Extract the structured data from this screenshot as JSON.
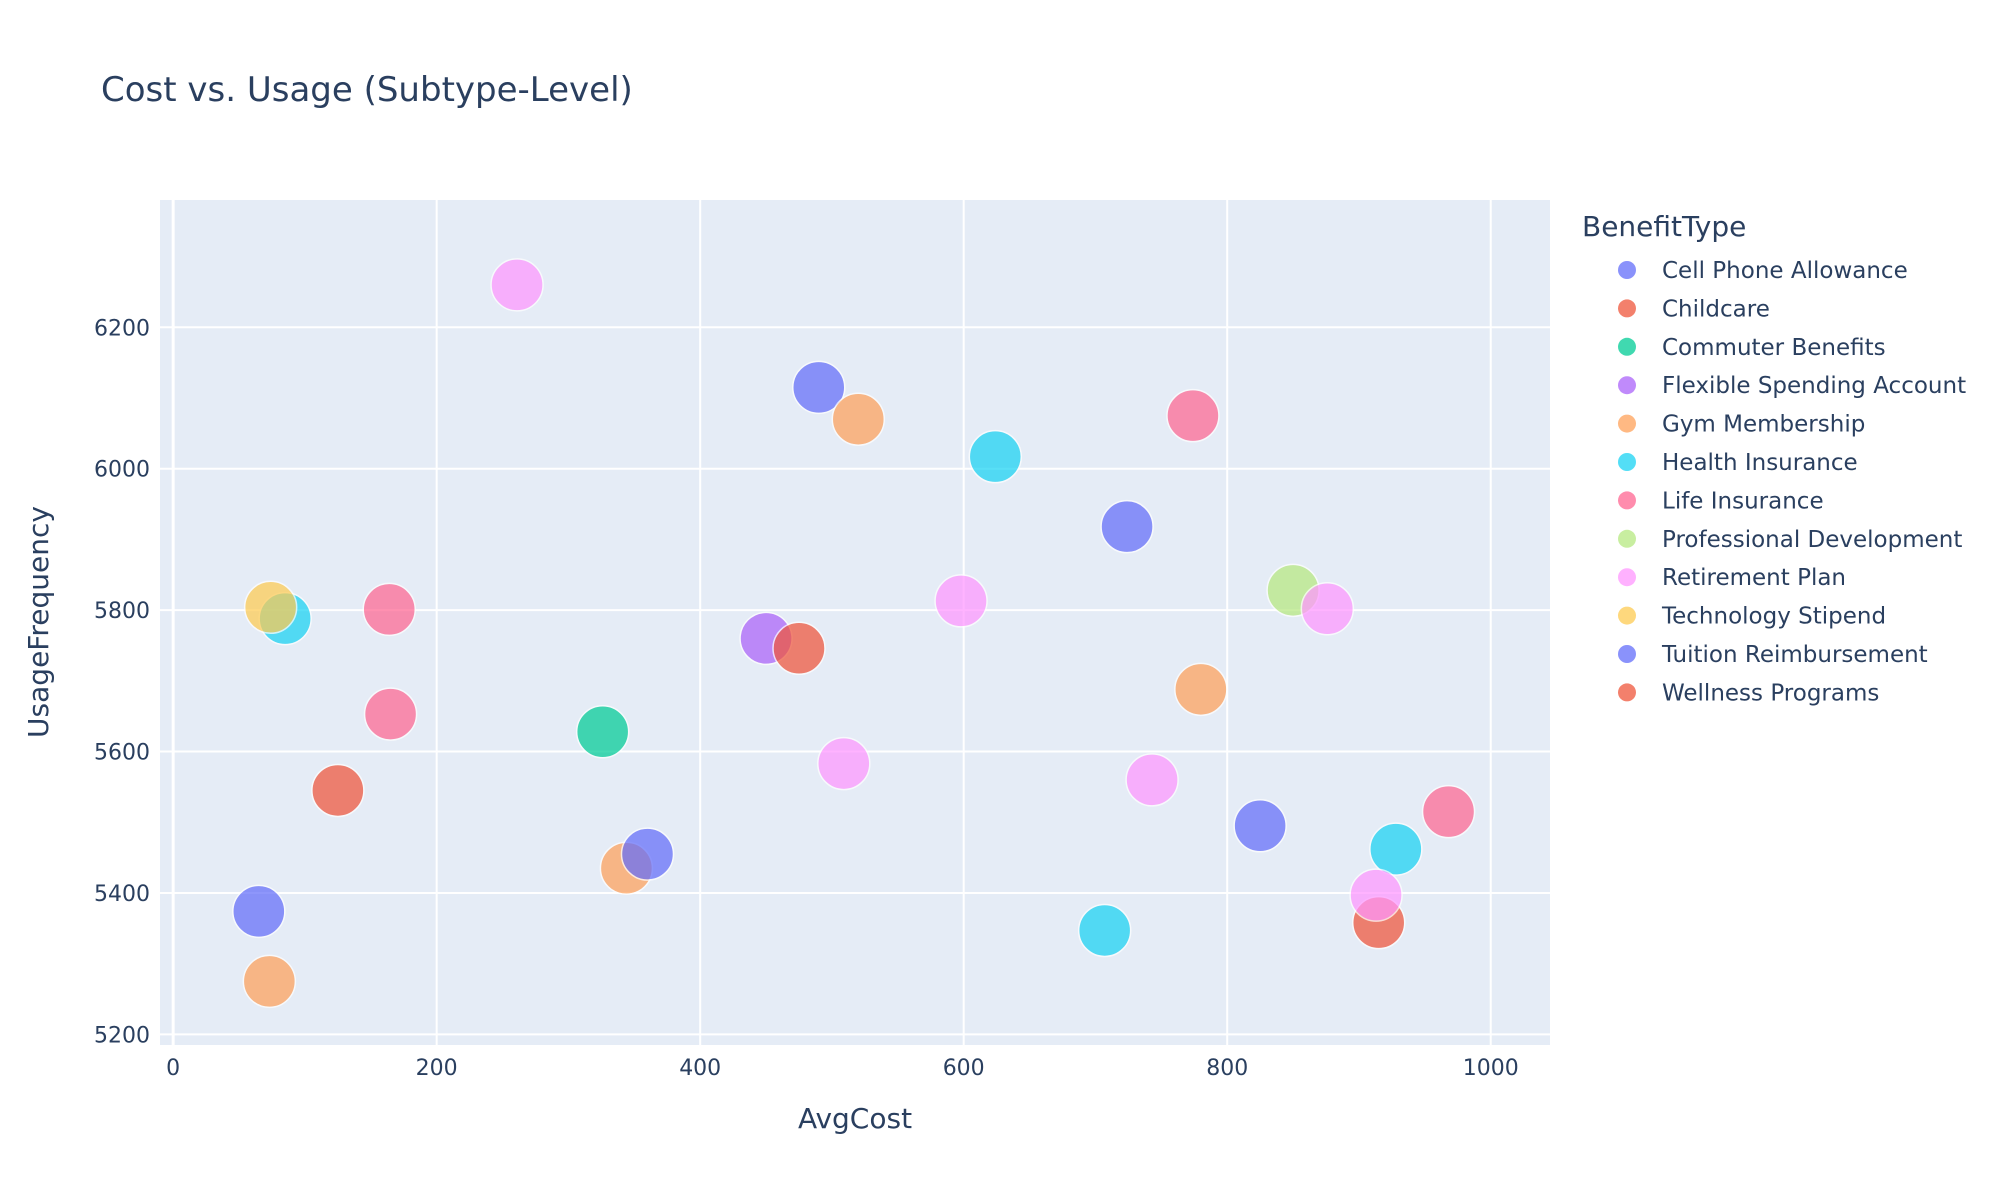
{
  "chart_data": {
    "type": "scatter",
    "title": "Cost vs. Usage (Subtype-Level)",
    "xlabel": "AvgCost",
    "ylabel": "UsageFrequency",
    "xlim": [
      -10,
      1045
    ],
    "ylim": [
      5185,
      6380
    ],
    "x_ticks": [
      0,
      200,
      400,
      600,
      800,
      1000
    ],
    "y_ticks": [
      5200,
      5400,
      5600,
      5800,
      6000,
      6200
    ],
    "grid": true,
    "legend_title": "BenefitType",
    "legend_position": "right",
    "series": [
      {
        "name": "Cell Phone Allowance",
        "color": "#636efa",
        "points": [
          [
            490,
            6115
          ],
          [
            724,
            5918
          ],
          [
            825,
            5495
          ]
        ]
      },
      {
        "name": "Childcare",
        "color": "#ef553b",
        "points": [
          [
            125,
            5545
          ],
          [
            915,
            5358
          ]
        ]
      },
      {
        "name": "Commuter Benefits",
        "color": "#00cc96",
        "points": [
          [
            326,
            5628
          ]
        ]
      },
      {
        "name": "Flexible Spending Account",
        "color": "#ab63fa",
        "points": [
          [
            450,
            5760
          ]
        ]
      },
      {
        "name": "Gym Membership",
        "color": "#ffa15a",
        "points": [
          [
            520,
            6070
          ],
          [
            780,
            5688
          ],
          [
            344,
            5435
          ],
          [
            73,
            5275
          ]
        ]
      },
      {
        "name": "Health Insurance",
        "color": "#19d3f3",
        "points": [
          [
            624,
            6017
          ],
          [
            85,
            5788
          ],
          [
            928,
            5462
          ],
          [
            707,
            5347
          ]
        ]
      },
      {
        "name": "Life Insurance",
        "color": "#ff6692",
        "points": [
          [
            774,
            6075
          ],
          [
            164,
            5801
          ],
          [
            165,
            5653
          ],
          [
            968,
            5515
          ]
        ]
      },
      {
        "name": "Professional Development",
        "color": "#b6e880",
        "points": [
          [
            850,
            5828
          ]
        ]
      },
      {
        "name": "Retirement Plan",
        "color": "#ff97ff",
        "points": [
          [
            261,
            6260
          ],
          [
            598,
            5813
          ],
          [
            876,
            5802
          ],
          [
            509,
            5583
          ],
          [
            743,
            5560
          ],
          [
            913,
            5397
          ]
        ]
      },
      {
        "name": "Technology Stipend",
        "color": "#fecb52",
        "points": [
          [
            74,
            5804
          ]
        ]
      },
      {
        "name": "Tuition Reimbursement",
        "color": "#636efa",
        "points": [
          [
            360,
            5455
          ],
          [
            65,
            5374
          ]
        ]
      },
      {
        "name": "Wellness Programs",
        "color": "#ef553b",
        "points": [
          [
            475,
            5746
          ]
        ]
      }
    ]
  }
}
